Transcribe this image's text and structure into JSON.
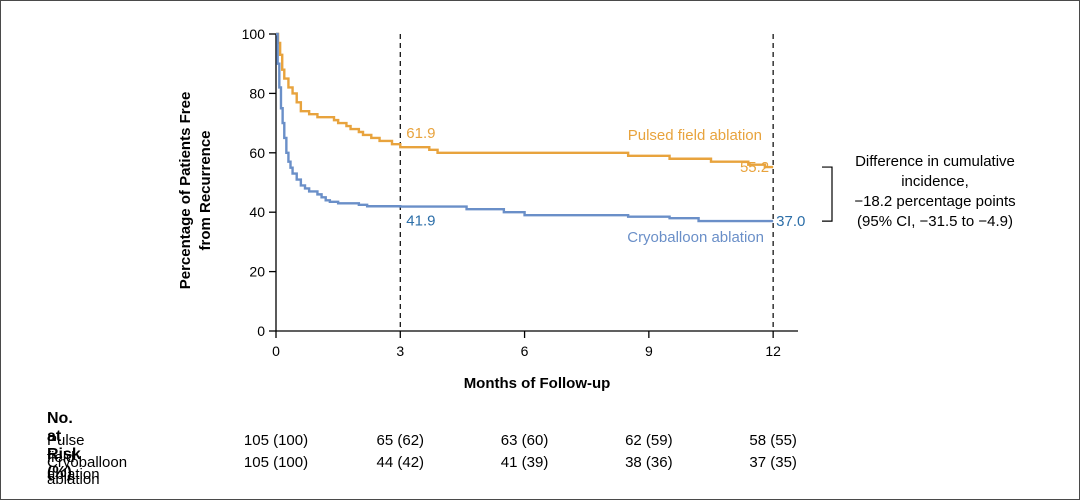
{
  "chart_data": {
    "type": "line",
    "subtype": "kaplan-meier-step",
    "xlabel": "Months of Follow-up",
    "ylabel_lines": [
      "Percentage of Patients Free",
      "from Recurrence"
    ],
    "xlim": [
      0,
      12.6
    ],
    "ylim": [
      0,
      100
    ],
    "xticks": [
      0,
      3,
      6,
      9,
      12
    ],
    "yticks": [
      0,
      20,
      40,
      60,
      80,
      100
    ],
    "reference_lines_x": [
      3,
      12
    ],
    "series": [
      {
        "name": "Pulsed field ablation",
        "color": "#e8a33d",
        "points": [
          [
            0,
            100
          ],
          [
            0.05,
            97
          ],
          [
            0.1,
            93
          ],
          [
            0.15,
            88
          ],
          [
            0.2,
            85
          ],
          [
            0.3,
            82
          ],
          [
            0.4,
            80
          ],
          [
            0.5,
            77
          ],
          [
            0.6,
            74
          ],
          [
            0.8,
            73
          ],
          [
            1.0,
            72
          ],
          [
            1.4,
            71
          ],
          [
            1.5,
            70
          ],
          [
            1.7,
            69
          ],
          [
            1.8,
            68
          ],
          [
            2.0,
            67
          ],
          [
            2.1,
            66
          ],
          [
            2.3,
            65
          ],
          [
            2.5,
            64
          ],
          [
            2.8,
            62.9
          ],
          [
            3.0,
            61.9
          ],
          [
            3.7,
            61.0
          ],
          [
            3.9,
            60
          ],
          [
            4.5,
            60
          ],
          [
            8.3,
            60
          ],
          [
            8.5,
            59
          ],
          [
            9.0,
            59
          ],
          [
            9.5,
            58
          ],
          [
            10.3,
            58
          ],
          [
            10.5,
            57
          ],
          [
            11.0,
            57
          ],
          [
            11.4,
            56
          ],
          [
            11.8,
            55.2
          ],
          [
            12.0,
            55.2
          ]
        ],
        "labels": [
          {
            "text": "61.9",
            "x": 3,
            "y": 61.9
          },
          {
            "text": "55.2",
            "x": 12,
            "y": 55.2
          }
        ]
      },
      {
        "name": "Cryoballoon ablation",
        "color": "#6a8fc8",
        "points": [
          [
            0,
            100
          ],
          [
            0.04,
            90
          ],
          [
            0.08,
            82
          ],
          [
            0.12,
            75
          ],
          [
            0.16,
            70
          ],
          [
            0.2,
            65
          ],
          [
            0.25,
            60
          ],
          [
            0.3,
            57
          ],
          [
            0.35,
            55
          ],
          [
            0.4,
            53
          ],
          [
            0.5,
            51
          ],
          [
            0.6,
            49
          ],
          [
            0.7,
            48
          ],
          [
            0.8,
            47
          ],
          [
            1.0,
            46
          ],
          [
            1.1,
            45
          ],
          [
            1.2,
            44
          ],
          [
            1.3,
            43.5
          ],
          [
            1.5,
            43
          ],
          [
            2.0,
            42.5
          ],
          [
            2.2,
            42
          ],
          [
            3.0,
            41.9
          ],
          [
            4.5,
            41.9
          ],
          [
            4.6,
            41
          ],
          [
            5.4,
            41
          ],
          [
            5.5,
            40
          ],
          [
            6.0,
            39
          ],
          [
            8.4,
            39
          ],
          [
            8.5,
            38.5
          ],
          [
            9.3,
            38.5
          ],
          [
            9.5,
            38
          ],
          [
            10.0,
            38
          ],
          [
            10.2,
            37
          ],
          [
            12.0,
            37.0
          ]
        ],
        "labels": [
          {
            "text": "41.9",
            "x": 3,
            "y": 41.9
          },
          {
            "text": "37.0",
            "x": 12,
            "y": 37.0
          }
        ]
      }
    ],
    "annotation": {
      "lines": [
        "Difference in cumulative",
        "incidence,",
        "−18.2 percentage points",
        "(95% CI, −31.5 to −4.9)"
      ]
    }
  },
  "risk_table": {
    "title": "No. at Risk (%)",
    "timepoints": [
      0,
      3,
      6,
      9,
      12
    ],
    "rows": [
      {
        "label": "Pulse field ablation",
        "values": [
          "105 (100)",
          "65 (62)",
          "63 (60)",
          "62 (59)",
          "58 (55)"
        ]
      },
      {
        "label": "Cryoballoon ablation",
        "values": [
          "105 (100)",
          "44 (42)",
          "41 (39)",
          "38 (36)",
          "37 (35)"
        ]
      }
    ]
  }
}
